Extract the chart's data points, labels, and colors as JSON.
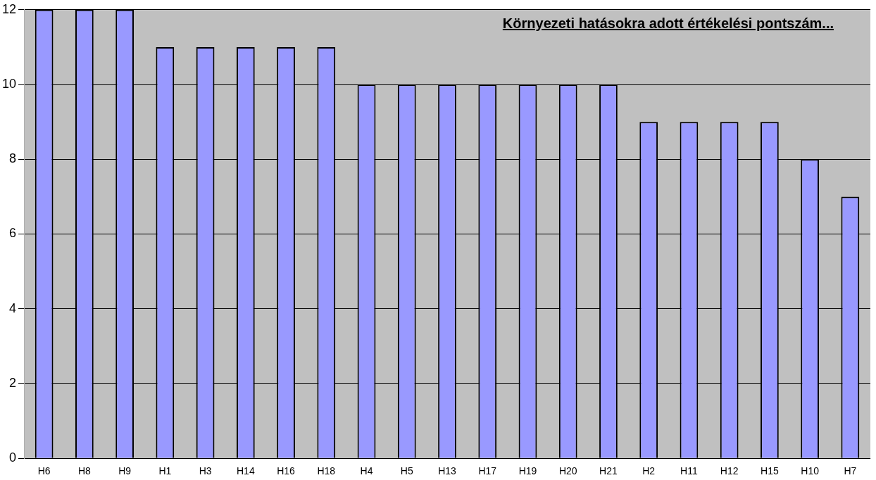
{
  "chart_data": {
    "type": "bar",
    "title": "Környezeti hatásokra adott értékelési pontszám...",
    "categories": [
      "H6",
      "H8",
      "H9",
      "H1",
      "H3",
      "H14",
      "H16",
      "H18",
      "H4",
      "H5",
      "H13",
      "H17",
      "H19",
      "H20",
      "H21",
      "H2",
      "H11",
      "H12",
      "H15",
      "H10",
      "H7"
    ],
    "values": [
      12,
      12,
      12,
      11,
      11,
      11,
      11,
      11,
      10,
      10,
      10,
      10,
      10,
      10,
      10,
      9,
      9,
      9,
      9,
      8,
      7
    ],
    "color": "#9999ff",
    "ylim": [
      0,
      12
    ],
    "yticks": [
      0,
      2,
      4,
      6,
      8,
      10,
      12
    ],
    "grid": "y",
    "legend": false
  }
}
